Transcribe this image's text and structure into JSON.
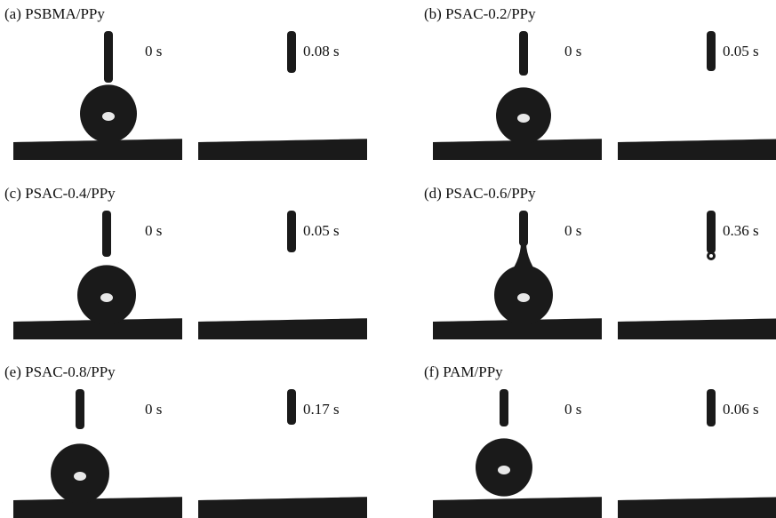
{
  "panels": [
    {
      "label": "(a) PSBMA/PPy",
      "times": [
        "0 s",
        "0.08 s"
      ]
    },
    {
      "label": "(b) PSAC-0.2/PPy",
      "times": [
        "0 s",
        "0.05 s"
      ]
    },
    {
      "label": "(c) PSAC-0.4/PPy",
      "times": [
        "0 s",
        "0.05 s"
      ]
    },
    {
      "label": "(d) PSAC-0.6/PPy",
      "times": [
        "0 s",
        "0.36 s"
      ]
    },
    {
      "label": "(e) PSAC-0.8/PPy",
      "times": [
        "0 s",
        "0.17 s"
      ]
    },
    {
      "label": "(f) PAM/PPy",
      "times": [
        "0 s",
        "0.06 s"
      ]
    }
  ]
}
